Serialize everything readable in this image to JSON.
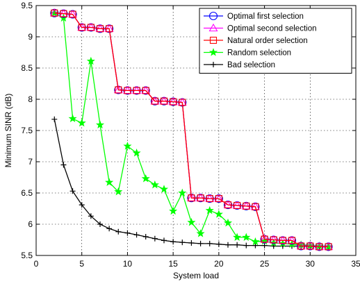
{
  "chart_data": {
    "type": "line",
    "xlabel": "System load",
    "ylabel": "Minimum SINR (dB)",
    "xlim": [
      0,
      35
    ],
    "ylim": [
      5.5,
      9.5
    ],
    "xticks": [
      0,
      5,
      10,
      15,
      20,
      25,
      30,
      35
    ],
    "yticks": [
      5.5,
      6,
      6.5,
      7,
      7.5,
      8,
      8.5,
      9,
      9.5
    ],
    "grid": true,
    "legend_position": "top-right",
    "x": [
      2,
      3,
      4,
      5,
      6,
      7,
      8,
      9,
      10,
      11,
      12,
      13,
      14,
      15,
      16,
      17,
      18,
      19,
      20,
      21,
      22,
      23,
      24,
      25,
      26,
      27,
      28,
      29,
      30,
      31,
      32
    ],
    "series": [
      {
        "name": "Optimal first selection",
        "color": "#0000ff",
        "marker": "circle",
        "values": [
          9.38,
          9.37,
          9.36,
          9.15,
          9.15,
          9.13,
          9.13,
          8.15,
          8.14,
          8.14,
          8.14,
          7.97,
          7.97,
          7.96,
          7.95,
          6.42,
          6.42,
          6.41,
          6.41,
          6.31,
          6.3,
          6.29,
          6.28,
          5.76,
          5.75,
          5.74,
          5.74,
          5.65,
          5.65,
          5.64,
          5.64
        ]
      },
      {
        "name": "Optimal second selection",
        "color": "#ff00ff",
        "marker": "triangle",
        "values": [
          9.38,
          9.37,
          9.36,
          9.15,
          9.15,
          9.13,
          9.13,
          8.15,
          8.14,
          8.14,
          8.14,
          7.97,
          7.97,
          7.96,
          7.95,
          6.42,
          6.42,
          6.41,
          6.41,
          6.31,
          6.3,
          6.29,
          6.28,
          5.76,
          5.75,
          5.74,
          5.74,
          5.65,
          5.65,
          5.64,
          5.64
        ]
      },
      {
        "name": "Natural order selection",
        "color": "#ff0000",
        "marker": "square",
        "values": [
          9.38,
          9.37,
          9.36,
          9.15,
          9.15,
          9.13,
          9.13,
          8.15,
          8.14,
          8.14,
          8.14,
          7.97,
          7.97,
          7.96,
          7.95,
          6.42,
          6.42,
          6.41,
          6.41,
          6.31,
          6.3,
          6.29,
          6.28,
          5.76,
          5.75,
          5.74,
          5.74,
          5.65,
          5.65,
          5.64,
          5.64
        ]
      },
      {
        "name": "Random selection",
        "color": "#00ff00",
        "marker": "star",
        "values": [
          9.38,
          9.3,
          7.69,
          7.62,
          8.61,
          7.59,
          6.67,
          6.52,
          7.25,
          7.14,
          6.73,
          6.63,
          6.56,
          6.21,
          6.5,
          6.03,
          5.85,
          6.22,
          6.16,
          6.02,
          5.79,
          5.79,
          5.72,
          5.73,
          5.7,
          5.69,
          5.68,
          5.67,
          5.66,
          5.65,
          5.64
        ]
      },
      {
        "name": "Bad selection",
        "color": "#000000",
        "marker": "plus",
        "values": [
          7.68,
          6.95,
          6.53,
          6.31,
          6.13,
          6.0,
          5.93,
          5.88,
          5.86,
          5.83,
          5.8,
          5.77,
          5.74,
          5.72,
          5.71,
          5.7,
          5.69,
          5.69,
          5.68,
          5.67,
          5.67,
          5.66,
          5.66,
          5.66,
          5.65,
          5.65,
          5.65,
          5.65,
          5.64,
          5.64,
          5.64
        ]
      }
    ]
  }
}
